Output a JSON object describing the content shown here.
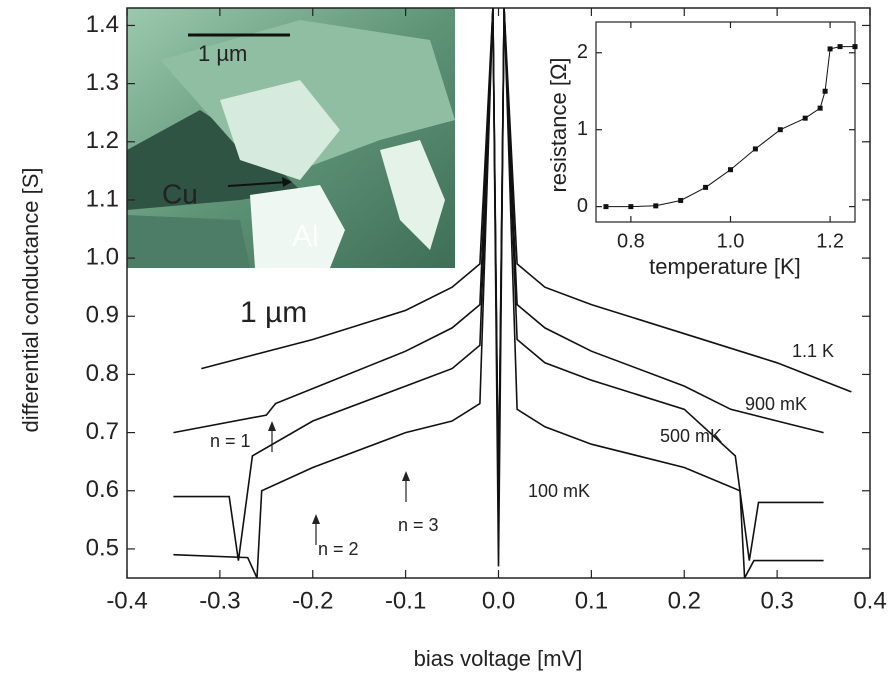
{
  "chart_data": [
    {
      "type": "line",
      "xlabel": "bias voltage [mV]",
      "ylabel": "differential conductance [S]",
      "xlim": [
        -0.4,
        0.4
      ],
      "ylim": [
        0.45,
        1.43
      ],
      "xticks": [
        -0.4,
        -0.3,
        -0.2,
        -0.1,
        {
          "value": 0,
          "label": "0.0"
        },
        0.1,
        0.2,
        0.3,
        0.4
      ],
      "yticks": [
        0.5,
        0.6,
        0.7,
        0.8,
        0.9,
        {
          "value": 1,
          "label": "1.0"
        },
        1.1,
        1.2,
        1.3,
        1.4
      ],
      "series": [
        {
          "name": "1.1 K",
          "color": "#111111",
          "x": [
            -0.32,
            -0.2,
            -0.1,
            -0.05,
            -0.02,
            -0.006,
            0,
            0.006,
            0.02,
            0.05,
            0.1,
            0.2,
            0.3,
            0.38
          ],
          "values": [
            0.81,
            0.86,
            0.91,
            0.95,
            0.99,
            1.43,
            0.6,
            1.43,
            0.99,
            0.95,
            0.92,
            0.87,
            0.82,
            0.77
          ]
        },
        {
          "name": "900 mK",
          "color": "#111111",
          "x": [
            -0.35,
            -0.25,
            -0.24,
            -0.1,
            -0.05,
            -0.02,
            -0.006,
            0,
            0.006,
            0.02,
            0.05,
            0.1,
            0.2,
            0.25,
            0.3,
            0.35
          ],
          "values": [
            0.7,
            0.73,
            0.75,
            0.84,
            0.88,
            0.92,
            1.43,
            0.57,
            1.43,
            0.92,
            0.88,
            0.84,
            0.78,
            0.74,
            0.72,
            0.7
          ]
        },
        {
          "name": "500 mK",
          "color": "#111111",
          "x": [
            -0.35,
            -0.29,
            -0.28,
            -0.265,
            -0.2,
            -0.1,
            -0.05,
            -0.02,
            -0.006,
            0,
            0.006,
            0.02,
            0.05,
            0.1,
            0.2,
            0.255,
            0.27,
            0.28,
            0.35
          ],
          "values": [
            0.59,
            0.59,
            0.48,
            0.66,
            0.72,
            0.78,
            0.81,
            0.85,
            1.43,
            0.55,
            1.43,
            0.86,
            0.82,
            0.79,
            0.74,
            0.66,
            0.48,
            0.58,
            0.58
          ]
        },
        {
          "name": "100 mK",
          "color": "#111111",
          "x": [
            -0.35,
            -0.27,
            -0.26,
            -0.255,
            -0.2,
            -0.1,
            -0.05,
            -0.02,
            -0.006,
            0,
            0.006,
            0.02,
            0.05,
            0.1,
            0.2,
            0.26,
            0.265,
            0.275,
            0.35
          ],
          "values": [
            0.49,
            0.485,
            0.45,
            0.6,
            0.64,
            0.7,
            0.72,
            0.75,
            1.43,
            0.47,
            1.43,
            0.74,
            0.71,
            0.68,
            0.64,
            0.6,
            0.45,
            0.48,
            0.48
          ]
        }
      ],
      "annotations": [
        "1 µm",
        "n = 1",
        "n = 2",
        "n = 3"
      ],
      "image_labels": [
        "1 µm",
        "Cu",
        "Al"
      ]
    },
    {
      "type": "scatter-line",
      "xlabel": "temperature [K]",
      "ylabel": "resistance [Ω]",
      "xlim": [
        0.73,
        1.25
      ],
      "ylim": [
        -0.2,
        2.4
      ],
      "xticks": [
        0.8,
        {
          "value": 1,
          "label": "1.0"
        },
        1.2
      ],
      "yticks": [
        0,
        1,
        2
      ],
      "color": "#111111",
      "x": [
        0.75,
        0.8,
        0.85,
        0.9,
        0.95,
        1.0,
        1.05,
        1.1,
        1.15,
        1.18,
        1.19,
        1.2,
        1.22,
        1.25
      ],
      "values": [
        0,
        0,
        0.01,
        0.08,
        0.25,
        0.48,
        0.75,
        1.0,
        1.15,
        1.28,
        1.5,
        2.05,
        2.08,
        2.08
      ]
    }
  ]
}
